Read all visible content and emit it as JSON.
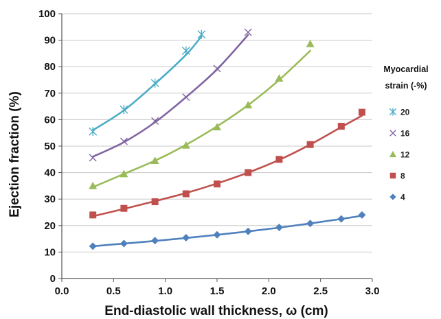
{
  "chart_data": {
    "type": "line",
    "xlabel": "End-diastolic  wall thickness, ω (cm)",
    "ylabel": "Ejection fraction (%)",
    "xlim": [
      0.0,
      3.0
    ],
    "ylim": [
      0,
      100
    ],
    "x_ticks": [
      "0.0",
      "0.5",
      "1.0",
      "1.5",
      "2.0",
      "2.5",
      "3.0"
    ],
    "y_ticks": [
      "0",
      "10",
      "20",
      "30",
      "40",
      "50",
      "60",
      "70",
      "80",
      "90",
      "100"
    ],
    "grid": "horizontal",
    "legend": {
      "title_lines": [
        "Myocardial",
        "strain (-%)"
      ],
      "placement": "right"
    },
    "series": [
      {
        "name": "20",
        "marker": "asterisk",
        "color": "#4bacc6",
        "x": [
          0.3,
          0.6,
          0.9,
          1.2,
          1.35
        ],
        "y": [
          55.5,
          63.8,
          73.8,
          86.0,
          92.2
        ],
        "fit": [
          56,
          63.5,
          73.5,
          84.5,
          91.5
        ]
      },
      {
        "name": "16",
        "marker": "x",
        "color": "#8064a2",
        "x": [
          0.3,
          0.6,
          0.9,
          1.2,
          1.5,
          1.8
        ],
        "y": [
          45.6,
          51.8,
          59.5,
          68.5,
          79.3,
          93.0
        ],
        "fit": [
          46,
          51.5,
          59,
          68.5,
          79,
          92
        ]
      },
      {
        "name": "12",
        "marker": "triangle",
        "color": "#9bbb59",
        "x": [
          0.3,
          0.6,
          0.9,
          1.2,
          1.5,
          1.8,
          2.1,
          2.4
        ],
        "y": [
          35.0,
          39.5,
          44.5,
          50.3,
          57.2,
          65.5,
          75.6,
          88.6
        ],
        "fit": [
          34.5,
          39.5,
          44.5,
          50.5,
          57.5,
          65.5,
          75,
          86
        ]
      },
      {
        "name": "8",
        "marker": "square",
        "color": "#c0504d",
        "x": [
          0.3,
          0.6,
          0.9,
          1.2,
          1.5,
          1.8,
          2.1,
          2.4,
          2.7,
          2.9
        ],
        "y": [
          24.0,
          26.5,
          29.0,
          32.0,
          35.7,
          40.0,
          45.0,
          50.6,
          57.5,
          62.8
        ],
        "fit": [
          23.5,
          26.3,
          29.2,
          32.3,
          35.9,
          40.0,
          44.8,
          50.6,
          57.2,
          61.5
        ]
      },
      {
        "name": "4",
        "marker": "diamond",
        "color": "#4f81bd",
        "x": [
          0.3,
          0.6,
          0.9,
          1.2,
          1.5,
          1.8,
          2.1,
          2.4,
          2.7,
          2.9
        ],
        "y": [
          12.2,
          13.2,
          14.3,
          15.4,
          16.5,
          17.8,
          19.3,
          20.8,
          22.5,
          24.0
        ],
        "fit": [
          12.2,
          13.2,
          14.2,
          15.3,
          16.5,
          17.8,
          19.2,
          20.8,
          22.5,
          23.7
        ]
      }
    ]
  }
}
